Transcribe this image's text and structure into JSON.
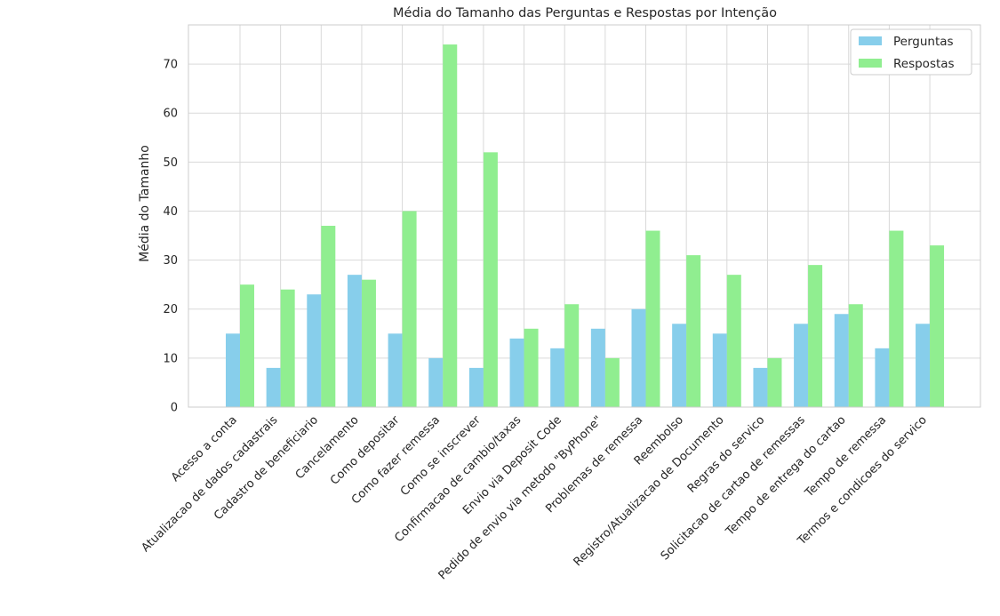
{
  "chart_data": {
    "type": "bar",
    "title": "Média do Tamanho das Perguntas e Respostas por Intenção",
    "xlabel": "",
    "ylabel": "Média do Tamanho",
    "ylim": [
      0,
      78
    ],
    "yticks": [
      0,
      10,
      20,
      30,
      40,
      50,
      60,
      70
    ],
    "grid": true,
    "legend_position": "top-right",
    "categories": [
      "Acesso a conta",
      "Atualizacao de dados cadastrais",
      "Cadastro de beneficiario",
      "Cancelamento",
      "Como depositar",
      "Como fazer remessa",
      "Como se inscrever",
      "Confirmacao de cambio/taxas",
      "Envio via Deposit Code",
      "Pedido de envio via metodo \"ByPhone\"",
      "Problemas de remessa",
      "Reembolso",
      "Registro/Atualizacao de Documento",
      "Regras do servico",
      "Solicitacao de cartao de remessas",
      "Tempo de entrega do cartao",
      "Tempo de remessa",
      "Termos e condicoes do servico"
    ],
    "series": [
      {
        "name": "Perguntas",
        "color": "#87ceeb",
        "values": [
          15,
          8,
          23,
          27,
          15,
          10,
          8,
          14,
          12,
          16,
          20,
          17,
          15,
          8,
          17,
          19,
          12,
          17
        ]
      },
      {
        "name": "Respostas",
        "color": "#90ee90",
        "values": [
          25,
          24,
          37,
          26,
          40,
          74,
          52,
          16,
          21,
          10,
          36,
          31,
          27,
          10,
          29,
          21,
          36,
          33
        ]
      }
    ]
  }
}
